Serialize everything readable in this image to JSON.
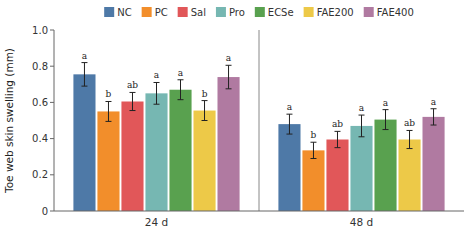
{
  "chart_data": {
    "type": "bar",
    "categories": [
      "24 d",
      "48 d"
    ],
    "ylabel": "Toe web skin swelling (mm)",
    "ylim": [
      0,
      1.0
    ],
    "yticks": [
      0,
      0.2,
      0.4,
      0.6,
      0.8,
      {
        "value": 1.0,
        "label": "1.0"
      }
    ],
    "grid": false,
    "legend": "top",
    "series": [
      {
        "name": "NC",
        "color": "#4e79a7",
        "values": [
          0.755,
          0.48
        ],
        "errors": [
          0.065,
          0.055
        ],
        "annotations": [
          "a",
          "a"
        ]
      },
      {
        "name": "PC",
        "color": "#f28e2b",
        "values": [
          0.55,
          0.335
        ],
        "errors": [
          0.055,
          0.045
        ],
        "annotations": [
          "b",
          "b"
        ]
      },
      {
        "name": "Sal",
        "color": "#e15759",
        "values": [
          0.605,
          0.395
        ],
        "errors": [
          0.05,
          0.045
        ],
        "annotations": [
          "ab",
          "ab"
        ]
      },
      {
        "name": "Pro",
        "color": "#76b7b2",
        "values": [
          0.65,
          0.47
        ],
        "errors": [
          0.06,
          0.06
        ],
        "annotations": [
          "a",
          "a"
        ]
      },
      {
        "name": "ECSe",
        "color": "#59a14f",
        "values": [
          0.67,
          0.505
        ],
        "errors": [
          0.055,
          0.055
        ],
        "annotations": [
          "a",
          "a"
        ]
      },
      {
        "name": "FAE200",
        "color": "#edc948",
        "values": [
          0.555,
          0.395
        ],
        "errors": [
          0.055,
          0.05
        ],
        "annotations": [
          "b",
          "ab"
        ]
      },
      {
        "name": "FAE400",
        "color": "#b07aa1",
        "values": [
          0.74,
          0.52
        ],
        "errors": [
          0.065,
          0.045
        ],
        "annotations": [
          "a",
          "a"
        ]
      }
    ]
  }
}
